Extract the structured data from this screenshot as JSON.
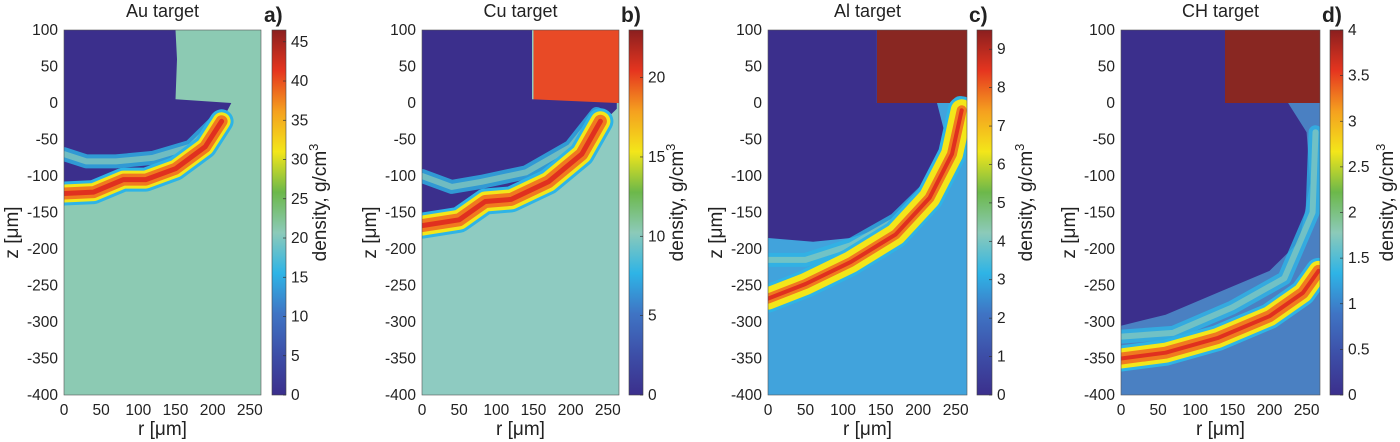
{
  "chart_data": [
    {
      "type": "heatmap",
      "panel_label": "a)",
      "title": "Au target",
      "xlabel": "r [μm]",
      "ylabel": "z [μm]",
      "xlim": [
        0,
        265
      ],
      "ylim": [
        -400,
        100
      ],
      "xticks": [
        0,
        50,
        100,
        150,
        200,
        250
      ],
      "yticks": [
        100,
        50,
        0,
        -50,
        -100,
        -150,
        -200,
        -250,
        -300,
        -350,
        -400
      ],
      "colorbar": {
        "label": "density, g/cm",
        "label_superscript": "3",
        "range": [
          0,
          46.5
        ],
        "ticks": [
          0,
          5,
          10,
          15,
          20,
          25,
          30,
          35,
          40,
          45
        ]
      },
      "colors": {
        "vacuum": "#3b2f8c",
        "target": "#8ccab3",
        "block": "#8ccab3"
      }
    },
    {
      "type": "heatmap",
      "panel_label": "b)",
      "title": "Cu target",
      "xlabel": "r [μm]",
      "ylabel": "z [μm]",
      "xlim": [
        0,
        265
      ],
      "ylim": [
        -400,
        100
      ],
      "xticks": [
        0,
        50,
        100,
        150,
        200,
        250
      ],
      "yticks": [
        100,
        50,
        0,
        -50,
        -100,
        -150,
        -200,
        -250,
        -300,
        -350,
        -400
      ],
      "colorbar": {
        "label": "density, g/cm",
        "label_superscript": "3",
        "range": [
          0,
          23
        ],
        "ticks": [
          0,
          5,
          10,
          15,
          20
        ]
      },
      "colors": {
        "vacuum": "#3b2f8c",
        "target": "#8ecbc1",
        "block": "#e84a26"
      }
    },
    {
      "type": "heatmap",
      "panel_label": "c)",
      "title": "Al target",
      "xlabel": "r [μm]",
      "ylabel": "z [μm]",
      "xlim": [
        0,
        265
      ],
      "ylim": [
        -400,
        100
      ],
      "xticks": [
        0,
        50,
        100,
        150,
        200,
        250
      ],
      "yticks": [
        100,
        50,
        0,
        -50,
        -100,
        -150,
        -200,
        -250,
        -300,
        -350,
        -400
      ],
      "colorbar": {
        "label": "density, g/cm",
        "label_superscript": "3",
        "range": [
          0,
          9.5
        ],
        "ticks": [
          0,
          1,
          2,
          3,
          4,
          5,
          6,
          7,
          8,
          9
        ]
      },
      "colors": {
        "vacuum": "#3b2f8c",
        "target": "#41a3dc",
        "block": "#892722"
      }
    },
    {
      "type": "heatmap",
      "panel_label": "d)",
      "title": "CH target",
      "xlabel": "r [μm]",
      "ylabel": "z [μm]",
      "xlim": [
        0,
        268
      ],
      "ylim": [
        -400,
        100
      ],
      "xticks": [
        0,
        50,
        100,
        150,
        200,
        250
      ],
      "yticks": [
        100,
        50,
        0,
        -50,
        -100,
        -150,
        -200,
        -250,
        -300,
        -350,
        -400
      ],
      "colorbar": {
        "label": "density, g/cm",
        "label_superscript": "3",
        "range": [
          0,
          4
        ],
        "ticks": [
          0,
          0.5,
          1,
          1.5,
          2,
          2.5,
          3,
          3.5,
          4
        ]
      },
      "colors": {
        "vacuum": "#3b2f8c",
        "target": "#4a80c2",
        "block": "#892722"
      }
    }
  ],
  "colormap": [
    "#3b2f8c",
    "#3d4fa8",
    "#3f74c4",
    "#2eb4e6",
    "#8ccab9",
    "#6cb84a",
    "#f3e61a",
    "#f5a01f",
    "#e5351f",
    "#8b1f1f"
  ]
}
